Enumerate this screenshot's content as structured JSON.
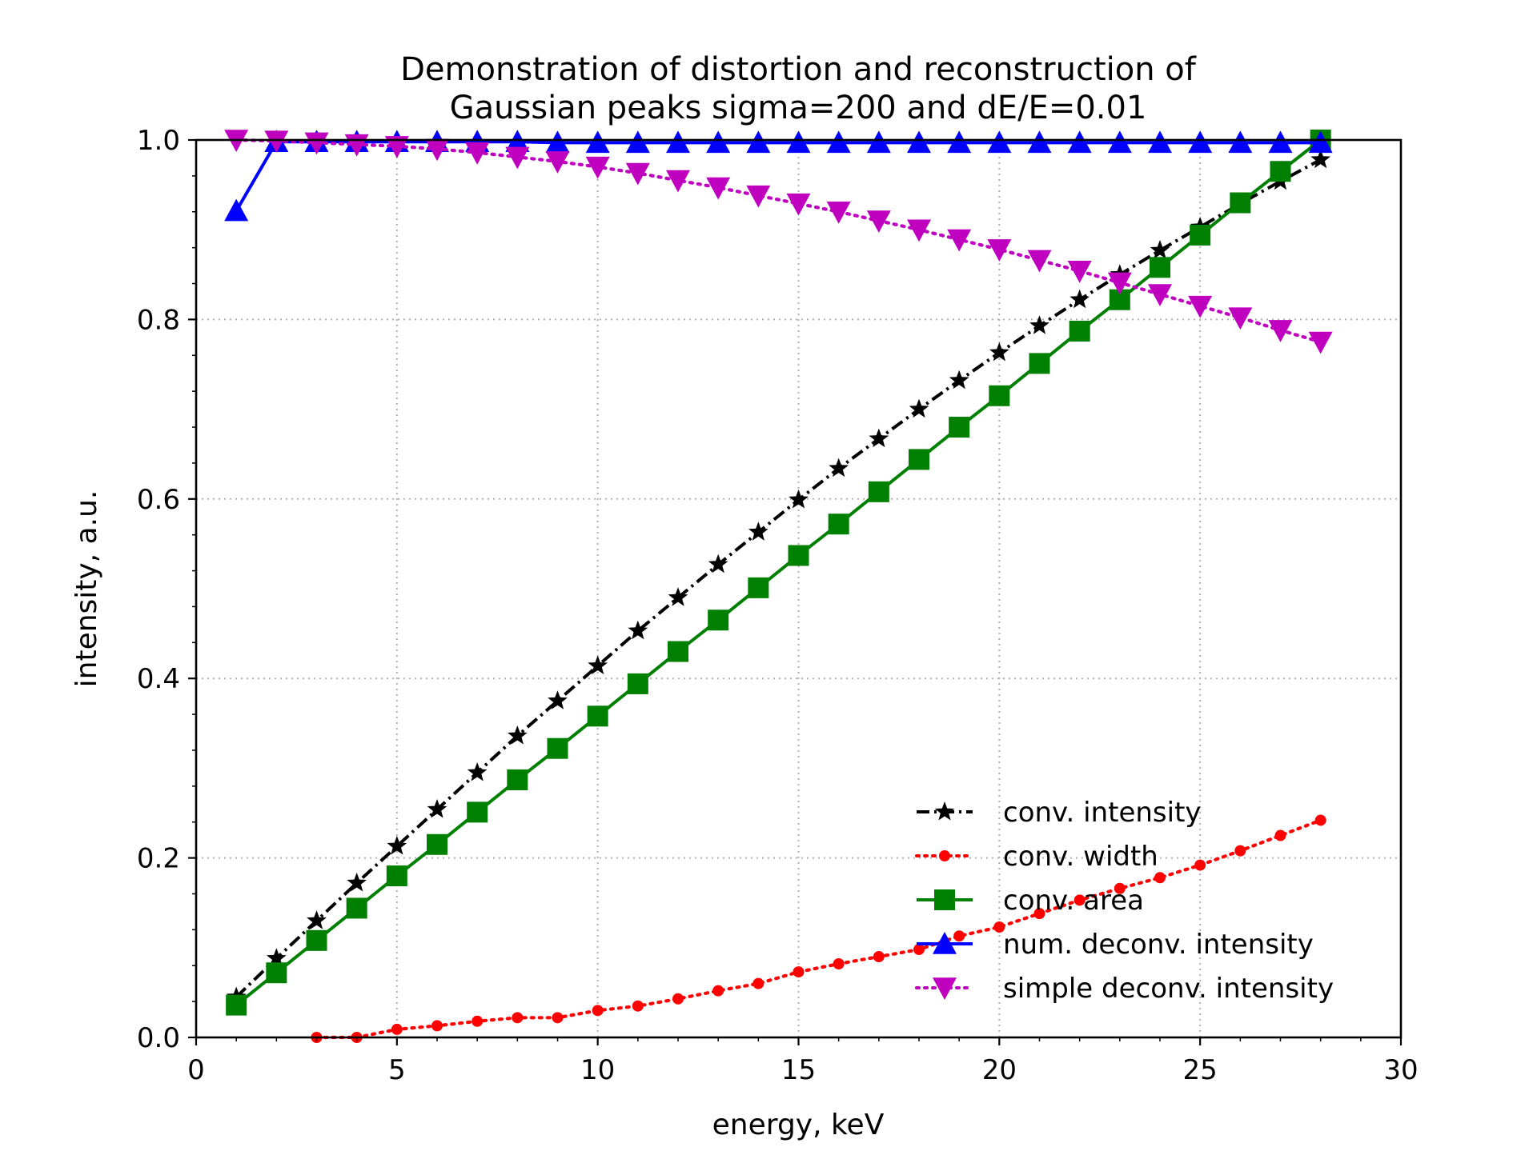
{
  "chart_data": {
    "type": "line",
    "title_line1": "Demonstration of  distortion and reconstruction of",
    "title_line2": "Gaussian peaks sigma=200 and dE/E=0.01",
    "xlabel": "energy, keV",
    "ylabel": "intensity, a.u.",
    "xlim": [
      0,
      30
    ],
    "ylim": [
      0.0,
      1.0
    ],
    "x_ticks": [
      0,
      5,
      10,
      15,
      20,
      25,
      30
    ],
    "x_tick_labels": [
      "0",
      "5",
      "10",
      "15",
      "20",
      "25",
      "30"
    ],
    "y_ticks": [
      0.0,
      0.2,
      0.4,
      0.6,
      0.8,
      1.0
    ],
    "y_tick_labels": [
      "0.0",
      "0.2",
      "0.4",
      "0.6",
      "0.8",
      "1.0"
    ],
    "grid": true,
    "legend_position": "lower-right",
    "series": [
      {
        "name": "conv. intensity",
        "color": "#000000",
        "marker": "star",
        "line_style": "dashdot",
        "x": [
          1,
          2,
          3,
          4,
          5,
          6,
          7,
          8,
          9,
          10,
          11,
          12,
          13,
          14,
          15,
          16,
          17,
          18,
          19,
          20,
          21,
          22,
          23,
          24,
          25,
          26,
          27,
          28
        ],
        "y": [
          0.045,
          0.088,
          0.13,
          0.172,
          0.213,
          0.254,
          0.295,
          0.336,
          0.375,
          0.414,
          0.453,
          0.49,
          0.527,
          0.563,
          0.599,
          0.634,
          0.667,
          0.7,
          0.732,
          0.763,
          0.793,
          0.822,
          0.85,
          0.877,
          0.903,
          0.929,
          0.954,
          0.978
        ]
      },
      {
        "name": "conv. width",
        "color": "#ff0000",
        "marker": "circle",
        "line_style": "dotted",
        "x": [
          3,
          4,
          5,
          6,
          7,
          8,
          9,
          10,
          11,
          12,
          13,
          14,
          15,
          16,
          17,
          18,
          19,
          20,
          21,
          22,
          23,
          24,
          25,
          26,
          27,
          28
        ],
        "y": [
          0.0,
          0.0,
          0.009,
          0.013,
          0.018,
          0.022,
          0.022,
          0.03,
          0.035,
          0.043,
          0.052,
          0.06,
          0.073,
          0.082,
          0.09,
          0.098,
          0.113,
          0.123,
          0.138,
          0.153,
          0.166,
          0.178,
          0.192,
          0.208,
          0.225,
          0.242
        ]
      },
      {
        "name": "conv. area",
        "color": "#008000",
        "marker": "square",
        "line_style": "solid",
        "x": [
          1,
          2,
          3,
          4,
          5,
          6,
          7,
          8,
          9,
          10,
          11,
          12,
          13,
          14,
          15,
          16,
          17,
          18,
          19,
          20,
          21,
          22,
          23,
          24,
          25,
          26,
          27,
          28
        ],
        "y": [
          0.036,
          0.072,
          0.108,
          0.144,
          0.18,
          0.215,
          0.251,
          0.287,
          0.322,
          0.358,
          0.394,
          0.43,
          0.465,
          0.501,
          0.537,
          0.572,
          0.608,
          0.644,
          0.68,
          0.715,
          0.751,
          0.787,
          0.822,
          0.858,
          0.894,
          0.93,
          0.965,
          1.0
        ]
      },
      {
        "name": "num. deconv. intensity",
        "color": "#0000ff",
        "marker": "triangle-up",
        "line_style": "solid",
        "x": [
          1,
          2,
          3,
          4,
          5,
          6,
          7,
          8,
          9,
          10,
          11,
          12,
          13,
          14,
          15,
          16,
          17,
          18,
          19,
          20,
          21,
          22,
          23,
          24,
          25,
          26,
          27,
          28
        ],
        "y": [
          0.921,
          0.998,
          0.998,
          0.998,
          0.998,
          0.998,
          0.998,
          0.998,
          0.997,
          0.997,
          0.997,
          0.997,
          0.997,
          0.997,
          0.997,
          0.997,
          0.997,
          0.997,
          0.997,
          0.997,
          0.997,
          0.997,
          0.997,
          0.997,
          0.997,
          0.997,
          0.997,
          0.997
        ]
      },
      {
        "name": "simple deconv. intensity",
        "color": "#bf00bf",
        "marker": "triangle-down",
        "line_style": "dotted",
        "x": [
          1,
          2,
          3,
          4,
          5,
          6,
          7,
          8,
          9,
          10,
          11,
          12,
          13,
          14,
          15,
          16,
          17,
          18,
          19,
          20,
          21,
          22,
          23,
          24,
          25,
          26,
          27,
          28
        ],
        "y": [
          1.0,
          0.999,
          0.997,
          0.995,
          0.993,
          0.99,
          0.986,
          0.981,
          0.976,
          0.97,
          0.963,
          0.955,
          0.947,
          0.938,
          0.929,
          0.92,
          0.91,
          0.9,
          0.889,
          0.878,
          0.866,
          0.854,
          0.841,
          0.828,
          0.815,
          0.802,
          0.788,
          0.775
        ]
      }
    ]
  }
}
